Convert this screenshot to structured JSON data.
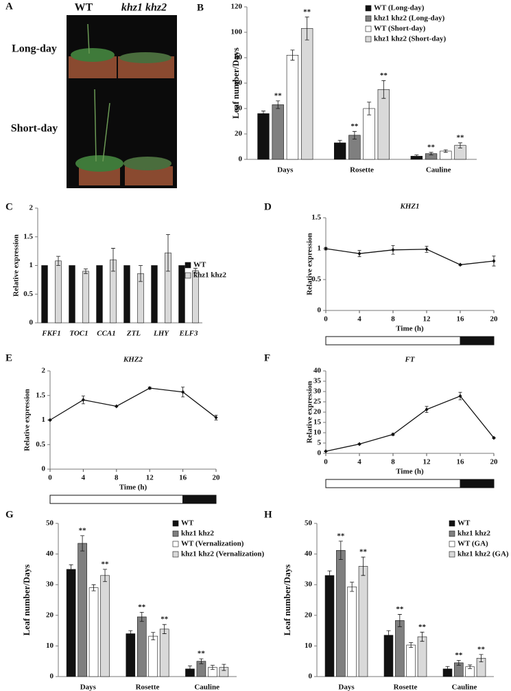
{
  "photo": {
    "panel": "A",
    "columns": [
      "WT",
      "khz1 khz2"
    ],
    "rows": [
      "Long-day",
      "Short-day"
    ]
  },
  "chart_data": [
    {
      "type": "bar",
      "panel": "B",
      "ylabel": "Leaf number/Days",
      "categories": [
        "Days",
        "Rosette",
        "Cauline"
      ],
      "ylim": [
        0,
        120
      ],
      "yticks": [
        0,
        20,
        40,
        60,
        80,
        100,
        120
      ],
      "legend": "upper right",
      "series": [
        {
          "name": "WT (Long-day)",
          "color": "#111111",
          "values": [
            36,
            13,
            2.5
          ],
          "errors": [
            2,
            2,
            1
          ]
        },
        {
          "name": "khz1 khz2 (Long-day)",
          "color": "#7f7f7f",
          "values": [
            43,
            19,
            4.5
          ],
          "errors": [
            3,
            3,
            1
          ],
          "significance": [
            "**",
            "**",
            "**"
          ]
        },
        {
          "name": "WT (Short-day)",
          "color": "#ffffff",
          "values": [
            82,
            40,
            6.5
          ],
          "errors": [
            4,
            5,
            1
          ]
        },
        {
          "name": "khz1 khz2 (Short-day)",
          "color": "#d9d9d9",
          "values": [
            103,
            55,
            11
          ],
          "errors": [
            9,
            7,
            2
          ],
          "significance": [
            "**",
            "**",
            "**"
          ]
        }
      ]
    },
    {
      "type": "bar",
      "panel": "C",
      "ylabel": "Relative expression",
      "categories": [
        "FKF1",
        "TOC1",
        "CCA1",
        "ZTL",
        "LHY",
        "ELF3"
      ],
      "ylim": [
        0,
        2
      ],
      "yticks": [
        0,
        0.5,
        1,
        1.5,
        2
      ],
      "legend": "right",
      "series": [
        {
          "name": "WT",
          "color": "#111111",
          "values": [
            1,
            1,
            1,
            1,
            1,
            1
          ]
        },
        {
          "name": "khz1 khz2",
          "color": "#d9d9d9",
          "values": [
            1.08,
            0.9,
            1.1,
            0.86,
            1.22,
            0.91
          ],
          "errors": [
            0.08,
            0.04,
            0.2,
            0.14,
            0.32,
            0.04
          ]
        }
      ]
    },
    {
      "type": "line",
      "panel": "D",
      "title": "KHZ1",
      "xlabel": "Time (h)",
      "ylabel": "Relative expression",
      "x": [
        0,
        4,
        8,
        12,
        16,
        20
      ],
      "values": [
        1,
        0.92,
        0.98,
        0.99,
        0.74,
        0.8
      ],
      "errors": [
        0.02,
        0.05,
        0.07,
        0.05,
        0.01,
        0.08
      ],
      "color": "#111111",
      "xlim": [
        0,
        20
      ],
      "xticks": [
        0,
        4,
        8,
        12,
        16,
        20
      ],
      "ylim": [
        0,
        1.5
      ],
      "yticks": [
        0,
        0.5,
        1,
        1.5
      ]
    },
    {
      "type": "line",
      "panel": "E",
      "title": "KHZ2",
      "xlabel": "Time (h)",
      "ylabel": "Relative expression",
      "x": [
        0,
        4,
        8,
        12,
        16,
        20
      ],
      "values": [
        1,
        1.41,
        1.28,
        1.65,
        1.57,
        1.05
      ],
      "errors": [
        0.01,
        0.08,
        0.01,
        0.02,
        0.1,
        0.05
      ],
      "color": "#111111",
      "xlim": [
        0,
        20
      ],
      "xticks": [
        0,
        4,
        8,
        12,
        16,
        20
      ],
      "ylim": [
        0,
        2
      ],
      "yticks": [
        0,
        0.5,
        1,
        1.5,
        2
      ]
    },
    {
      "type": "line",
      "panel": "F",
      "title": "FT",
      "xlabel": "Time (h)",
      "ylabel": "Relative expression",
      "x": [
        0,
        4,
        8,
        12,
        16,
        20
      ],
      "values": [
        1,
        4.5,
        9.2,
        21.3,
        27.8,
        7.5
      ],
      "errors": [
        0.2,
        0.3,
        0.5,
        1.5,
        1.8,
        0.3
      ],
      "color": "#111111",
      "xlim": [
        0,
        20
      ],
      "xticks": [
        0,
        4,
        8,
        12,
        16,
        20
      ],
      "ylim": [
        0,
        40
      ],
      "yticks": [
        0,
        5,
        10,
        15,
        20,
        25,
        30,
        35,
        40
      ]
    },
    {
      "type": "bar",
      "panel": "G",
      "ylabel": "Leaf number/Days",
      "categories": [
        "Days",
        "Rosette",
        "Cauline"
      ],
      "ylim": [
        0,
        50
      ],
      "yticks": [
        0,
        10,
        20,
        30,
        40,
        50
      ],
      "legend": "upper right",
      "series": [
        {
          "name": "WT",
          "color": "#111111",
          "values": [
            35,
            14,
            2.5
          ],
          "errors": [
            1.5,
            1,
            1
          ]
        },
        {
          "name": "khz1 khz2",
          "color": "#7f7f7f",
          "values": [
            43.5,
            19.5,
            5
          ],
          "errors": [
            2.5,
            1.5,
            0.8
          ],
          "significance": [
            "**",
            "**",
            "**"
          ]
        },
        {
          "name": "WT (Vernalization)",
          "color": "#ffffff",
          "values": [
            29,
            13.2,
            3
          ],
          "errors": [
            1,
            1.2,
            0.7
          ]
        },
        {
          "name": "khz1 khz2 (Vernalization)",
          "color": "#d9d9d9",
          "values": [
            33,
            15.5,
            3
          ],
          "errors": [
            2,
            1.5,
            1
          ],
          "significance": [
            "**",
            "**",
            null
          ]
        }
      ]
    },
    {
      "type": "bar",
      "panel": "H",
      "ylabel": "Leaf number/Days",
      "categories": [
        "Days",
        "Rosette",
        "Cauline"
      ],
      "ylim": [
        0,
        50
      ],
      "yticks": [
        0,
        10,
        20,
        30,
        40,
        50
      ],
      "legend": "upper right",
      "series": [
        {
          "name": "WT",
          "color": "#111111",
          "values": [
            33,
            13.5,
            2.5
          ],
          "errors": [
            1.5,
            1.5,
            0.8
          ]
        },
        {
          "name": "khz1 khz2",
          "color": "#7f7f7f",
          "values": [
            41.2,
            18.3,
            4.5
          ],
          "errors": [
            3,
            2,
            0.8
          ],
          "significance": [
            "**",
            "**",
            "**"
          ]
        },
        {
          "name": "WT (GA)",
          "color": "#ffffff",
          "values": [
            29.3,
            10.3,
            3.2
          ],
          "errors": [
            1.5,
            0.8,
            0.6
          ]
        },
        {
          "name": "khz1 khz2 (GA)",
          "color": "#d9d9d9",
          "values": [
            36,
            13,
            6
          ],
          "errors": [
            3,
            1.5,
            1.2
          ],
          "significance": [
            "**",
            "**",
            "**"
          ]
        }
      ]
    }
  ]
}
